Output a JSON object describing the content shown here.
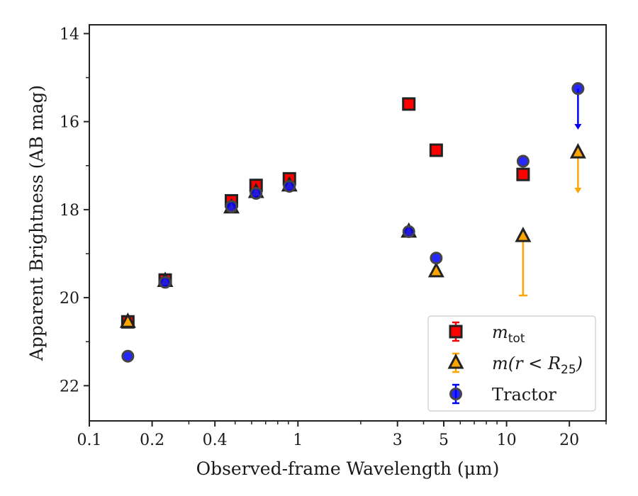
{
  "chart_data": {
    "type": "scatter",
    "xlabel": "Observed-frame Wavelength (μm)",
    "ylabel": "Apparent Brightness (AB mag)",
    "xscale": "log",
    "xlim": [
      0.1,
      30
    ],
    "ylim": [
      22.8,
      13.8
    ],
    "y_inverted": true,
    "grid": false,
    "legend_position": "lower-right",
    "x_tick_labels": [
      "0.1",
      "0.2",
      "0.4",
      "1",
      "3",
      "5",
      "10",
      "20"
    ],
    "y_tick_labels": [
      "14",
      "16",
      "18",
      "20",
      "22"
    ],
    "series": [
      {
        "name": "m_tot",
        "legend_label": "m",
        "legend_sub": "tot",
        "marker": "square",
        "color": "#ff0000",
        "points": [
          {
            "x": 0.153,
            "y": 20.55
          },
          {
            "x": 0.231,
            "y": 19.6
          },
          {
            "x": 0.48,
            "y": 17.8
          },
          {
            "x": 0.63,
            "y": 17.45
          },
          {
            "x": 0.91,
            "y": 17.3
          },
          {
            "x": 3.4,
            "y": 15.6
          },
          {
            "x": 4.6,
            "y": 16.65
          },
          {
            "x": 12.0,
            "y": 17.2
          }
        ]
      },
      {
        "name": "m(r < R25)",
        "legend_label": "m(r < R",
        "legend_sub": "25",
        "legend_suffix": ")",
        "marker": "triangle",
        "color": "#ffa500",
        "points": [
          {
            "x": 0.153,
            "y": 20.55
          },
          {
            "x": 0.231,
            "y": 19.62
          },
          {
            "x": 0.48,
            "y": 17.95
          },
          {
            "x": 0.63,
            "y": 17.6
          },
          {
            "x": 0.91,
            "y": 17.45
          },
          {
            "x": 3.4,
            "y": 18.5
          },
          {
            "x": 4.6,
            "y": 19.4
          },
          {
            "x": 12.0,
            "y": 18.6,
            "err": 1.35
          },
          {
            "x": 22.0,
            "y": 16.7,
            "upper_limit": true,
            "arrow_to": 17.6
          }
        ]
      },
      {
        "name": "Tractor",
        "legend_label": "Tractor",
        "marker": "circle",
        "color": "#0000ff",
        "points": [
          {
            "x": 0.153,
            "y": 21.33
          },
          {
            "x": 0.231,
            "y": 19.65
          },
          {
            "x": 0.48,
            "y": 17.93
          },
          {
            "x": 0.63,
            "y": 17.63
          },
          {
            "x": 0.91,
            "y": 17.47
          },
          {
            "x": 3.4,
            "y": 18.5
          },
          {
            "x": 4.6,
            "y": 19.1
          },
          {
            "x": 12.0,
            "y": 16.9
          },
          {
            "x": 22.0,
            "y": 15.25,
            "upper_limit": true,
            "arrow_to": 16.15
          }
        ]
      }
    ]
  }
}
